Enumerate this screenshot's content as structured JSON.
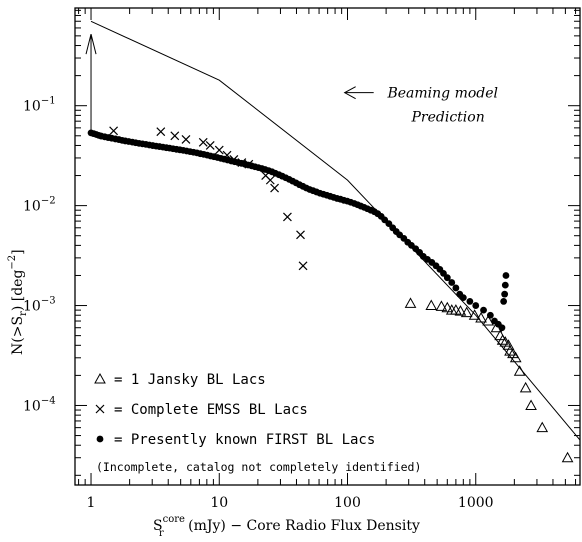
{
  "chart_data": {
    "type": "scatter",
    "xscale": "log",
    "yscale": "log",
    "xlim": [
      0.75,
      6500
    ],
    "ylim": [
      1.6e-05,
      0.95
    ],
    "grid": false,
    "xlabel": {
      "base": "S",
      "sup": "core",
      "sub": "r",
      "rest": " (mJy) − Core Radio Flux Density"
    },
    "ylabel": {
      "prefix": "N(>S",
      "sub": "r",
      "mid": ")   [deg",
      "sup": "−2",
      "suffix": "]"
    },
    "xticks": [
      {
        "value": 1,
        "label": "1"
      },
      {
        "value": 10,
        "label": "10"
      },
      {
        "value": 100,
        "label": "100"
      },
      {
        "value": 1000,
        "label": "1000"
      }
    ],
    "yticks": [
      {
        "value": 0.0001,
        "mant": "10",
        "exp": "−4"
      },
      {
        "value": 0.001,
        "mant": "10",
        "exp": "−3"
      },
      {
        "value": 0.01,
        "mant": "10",
        "exp": "−2"
      },
      {
        "value": 0.1,
        "mant": "10",
        "exp": "−1"
      }
    ],
    "annotation": {
      "line1": "Beaming model",
      "line2": "Prediction",
      "arrow_from": [
        160,
        0.135
      ],
      "arrow_to": [
        95,
        0.135
      ],
      "text_at": [
        205,
        0.135
      ]
    },
    "upper_arrow": {
      "x": 1.0,
      "y_from": 0.054,
      "y_to": 0.52
    },
    "model_line": {
      "name": "Beaming model Prediction",
      "points": [
        [
          1.0,
          0.7
        ],
        [
          10,
          0.18
        ],
        [
          100,
          0.018
        ],
        [
          1000,
          0.0008
        ],
        [
          6500,
          4.5e-05
        ]
      ]
    },
    "series": [
      {
        "name": "1 Jansky BL Lacs",
        "marker": "triangle",
        "points": [
          [
            310,
            0.00105
          ],
          [
            450,
            0.001
          ],
          [
            540,
            0.00098
          ],
          [
            600,
            0.00095
          ],
          [
            650,
            0.0009
          ],
          [
            700,
            0.0009
          ],
          [
            760,
            0.00088
          ],
          [
            850,
            0.00085
          ],
          [
            980,
            0.0008
          ],
          [
            1100,
            0.00075
          ],
          [
            1250,
            0.0007
          ],
          [
            1450,
            0.0006
          ],
          [
            1550,
            0.0005
          ],
          [
            1620,
            0.00045
          ],
          [
            1700,
            0.00043
          ],
          [
            1800,
            0.0004
          ],
          [
            1850,
            0.00035
          ],
          [
            1950,
            0.00033
          ],
          [
            2050,
            0.0003
          ],
          [
            2200,
            0.00022
          ],
          [
            2450,
            0.00015
          ],
          [
            2700,
            0.0001
          ],
          [
            3300,
            6e-05
          ],
          [
            5200,
            3e-05
          ]
        ]
      },
      {
        "name": "Complete EMSS BL Lacs",
        "marker": "cross",
        "points": [
          [
            1.5,
            0.056
          ],
          [
            3.5,
            0.055
          ],
          [
            4.5,
            0.05
          ],
          [
            5.5,
            0.046
          ],
          [
            7.5,
            0.043
          ],
          [
            8.5,
            0.04
          ],
          [
            10,
            0.036
          ],
          [
            11.5,
            0.032
          ],
          [
            13,
            0.029
          ],
          [
            15,
            0.027
          ],
          [
            17,
            0.026
          ],
          [
            23,
            0.02
          ],
          [
            25,
            0.018
          ],
          [
            27,
            0.015
          ],
          [
            34,
            0.0077
          ],
          [
            43,
            0.0051
          ],
          [
            45,
            0.0025
          ]
        ]
      },
      {
        "name": "Presently known FIRST BL Lacs",
        "marker": "filled-circle",
        "points": [
          [
            1.0,
            0.0535
          ],
          [
            1.05,
            0.0525
          ],
          [
            1.1,
            0.0515
          ],
          [
            1.15,
            0.0505
          ],
          [
            1.2,
            0.0497
          ],
          [
            1.28,
            0.0488
          ],
          [
            1.36,
            0.048
          ],
          [
            1.45,
            0.0473
          ],
          [
            1.55,
            0.0465
          ],
          [
            1.65,
            0.0458
          ],
          [
            1.75,
            0.045
          ],
          [
            1.85,
            0.0444
          ],
          [
            1.97,
            0.0438
          ],
          [
            2.1,
            0.0432
          ],
          [
            2.23,
            0.0426
          ],
          [
            2.37,
            0.042
          ],
          [
            2.52,
            0.0415
          ],
          [
            2.68,
            0.041
          ],
          [
            2.85,
            0.0404
          ],
          [
            3.03,
            0.0399
          ],
          [
            3.22,
            0.0394
          ],
          [
            3.42,
            0.039
          ],
          [
            3.64,
            0.0385
          ],
          [
            3.87,
            0.038
          ],
          [
            4.1,
            0.0376
          ],
          [
            4.36,
            0.0371
          ],
          [
            4.64,
            0.0366
          ],
          [
            4.93,
            0.0362
          ],
          [
            5.24,
            0.0357
          ],
          [
            5.57,
            0.0352
          ],
          [
            5.92,
            0.0347
          ],
          [
            6.3,
            0.0342
          ],
          [
            6.7,
            0.0337
          ],
          [
            7.12,
            0.0331
          ],
          [
            7.57,
            0.0326
          ],
          [
            8.05,
            0.032
          ],
          [
            8.56,
            0.0314
          ],
          [
            9.1,
            0.0309
          ],
          [
            9.68,
            0.0303
          ],
          [
            10.3,
            0.0297
          ],
          [
            10.9,
            0.0292
          ],
          [
            11.6,
            0.0286
          ],
          [
            12.4,
            0.028
          ],
          [
            13.2,
            0.0275
          ],
          [
            14.0,
            0.027
          ],
          [
            14.9,
            0.0265
          ],
          [
            15.8,
            0.026
          ],
          [
            16.8,
            0.0255
          ],
          [
            17.9,
            0.025
          ],
          [
            19.0,
            0.0245
          ],
          [
            20.2,
            0.024
          ],
          [
            21.5,
            0.0235
          ],
          [
            22.8,
            0.023
          ],
          [
            24.3,
            0.0224
          ],
          [
            25.8,
            0.0218
          ],
          [
            27.4,
            0.0211
          ],
          [
            29.2,
            0.0204
          ],
          [
            31.0,
            0.0197
          ],
          [
            33.0,
            0.019
          ],
          [
            35.1,
            0.0183
          ],
          [
            37.3,
            0.0176
          ],
          [
            39.7,
            0.0169
          ],
          [
            42.2,
            0.0162
          ],
          [
            44.9,
            0.0156
          ],
          [
            47.7,
            0.015
          ],
          [
            50.7,
            0.0145
          ],
          [
            53.9,
            0.0141
          ],
          [
            57.3,
            0.0137
          ],
          [
            61.0,
            0.0133
          ],
          [
            64.9,
            0.013
          ],
          [
            69.0,
            0.0127
          ],
          [
            73.3,
            0.0124
          ],
          [
            78.0,
            0.0121
          ],
          [
            82.9,
            0.0118
          ],
          [
            88.1,
            0.0116
          ],
          [
            93.7,
            0.0113
          ],
          [
            99.6,
            0.0111
          ],
          [
            106,
            0.0108
          ],
          [
            113,
            0.0105
          ],
          [
            120,
            0.0102
          ],
          [
            127,
            0.0099
          ],
          [
            135,
            0.0096
          ],
          [
            143,
            0.0093
          ],
          [
            152,
            0.009
          ],
          [
            162,
            0.0087
          ],
          [
            172,
            0.0083
          ],
          [
            183,
            0.0078
          ],
          [
            195,
            0.0072
          ],
          [
            210,
            0.0066
          ],
          [
            225,
            0.006
          ],
          [
            240,
            0.0055
          ],
          [
            255,
            0.0051
          ],
          [
            275,
            0.0047
          ],
          [
            295,
            0.0043
          ],
          [
            315,
            0.004
          ],
          [
            340,
            0.0037
          ],
          [
            365,
            0.0034
          ],
          [
            390,
            0.0031
          ],
          [
            420,
            0.0029
          ],
          [
            455,
            0.0027
          ],
          [
            490,
            0.0025
          ],
          [
            525,
            0.0023
          ],
          [
            560,
            0.0021
          ],
          [
            600,
            0.0019
          ],
          [
            650,
            0.0017
          ],
          [
            700,
            0.0015
          ],
          [
            750,
            0.0013
          ],
          [
            800,
            0.0012
          ],
          [
            900,
            0.0011
          ],
          [
            1000,
            0.001
          ],
          [
            1150,
            0.0009
          ],
          [
            1300,
            0.0008
          ],
          [
            1400,
            0.0007
          ],
          [
            1500,
            0.00065
          ],
          [
            1600,
            0.0006
          ],
          [
            1650,
            0.0011
          ],
          [
            1680,
            0.0013
          ],
          [
            1700,
            0.0016
          ],
          [
            1720,
            0.002
          ]
        ]
      }
    ],
    "legend": {
      "placement": "bottom-left",
      "items": [
        {
          "marker": "triangle",
          "text": "= 1 Jansky BL Lacs"
        },
        {
          "marker": "cross",
          "text": "= Complete EMSS BL Lacs"
        },
        {
          "marker": "filled-circle",
          "text": "= Presently known FIRST BL Lacs"
        }
      ],
      "note": "(Incomplete, catalog not completely identified)"
    }
  }
}
